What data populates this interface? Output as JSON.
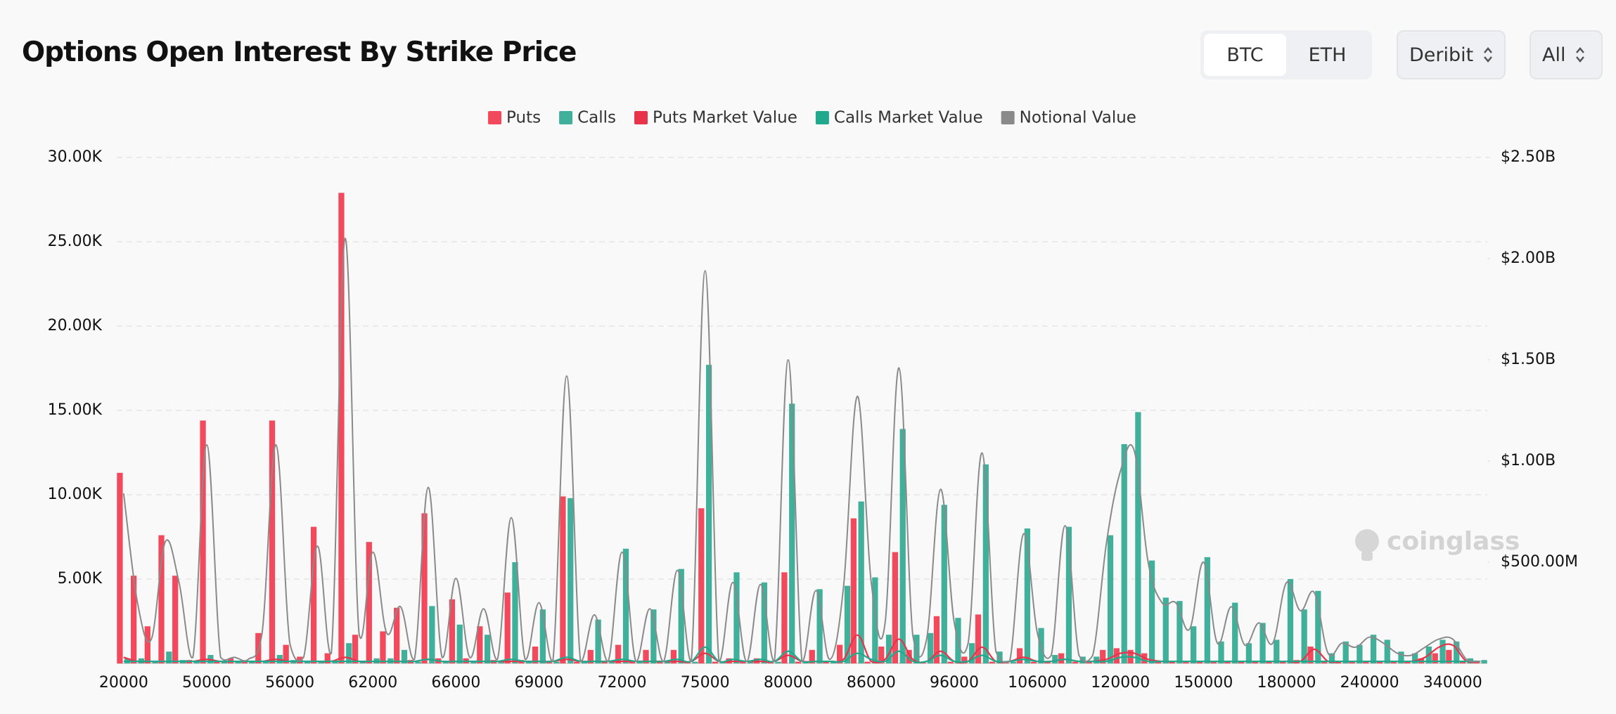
{
  "header": {
    "title": "Options Open Interest By Strike Price"
  },
  "controls": {
    "tabs": [
      "BTC",
      "ETH"
    ],
    "exchange": "Deribit",
    "expiry": "All"
  },
  "watermark": "coinglass",
  "chart_data": {
    "type": "bar",
    "categories": [
      "20000",
      null,
      null,
      null,
      null,
      null,
      "50000",
      null,
      null,
      null,
      null,
      null,
      "56000",
      null,
      null,
      null,
      null,
      null,
      "62000",
      null,
      null,
      null,
      null,
      null,
      "66000",
      null,
      null,
      null,
      null,
      null,
      "69000",
      null,
      null,
      null,
      null,
      null,
      "72000",
      null,
      null,
      null,
      null,
      null,
      "75000",
      null,
      null,
      null,
      null,
      null,
      "80000",
      null,
      null,
      null,
      null,
      null,
      "86000",
      null,
      null,
      null,
      null,
      null,
      "96000",
      null,
      null,
      null,
      null,
      null,
      "106000",
      null,
      null,
      null,
      null,
      null,
      "120000",
      null,
      null,
      null,
      null,
      null,
      "150000",
      null,
      null,
      null,
      null,
      null,
      "180000",
      null,
      null,
      null,
      null,
      null,
      "240000",
      null,
      null,
      null,
      null,
      null,
      "340000",
      null,
      null
    ],
    "ylim": [
      0,
      30
    ],
    "yticks": [
      {
        "value": 5,
        "label": "5.00K"
      },
      {
        "value": 10,
        "label": "10.00K"
      },
      {
        "value": 15,
        "label": "15.00K"
      },
      {
        "value": 20,
        "label": "20.00K"
      },
      {
        "value": 25,
        "label": "25.00K"
      },
      {
        "value": 30,
        "label": "30.00K"
      }
    ],
    "y2lim": [
      0,
      2.5
    ],
    "y2ticks": [
      {
        "value": 0.5,
        "label": "$500.00M"
      },
      {
        "value": 1,
        "label": "$1.00B"
      },
      {
        "value": 1.5,
        "label": "$1.50B"
      },
      {
        "value": 2,
        "label": "$2.00B"
      },
      {
        "value": 2.5,
        "label": "$2.50B"
      }
    ],
    "grid": true,
    "legend": "top",
    "series": [
      {
        "name": "Puts",
        "type": "bar",
        "color": "#f2495c",
        "values": [
          11.3,
          5.2,
          2.2,
          7.6,
          5.2,
          0.2,
          14.4,
          0.1,
          0.3,
          0.1,
          1.8,
          14.4,
          1.1,
          0.4,
          8.1,
          0.6,
          27.9,
          1.7,
          7.2,
          1.9,
          3.3,
          0.2,
          8.9,
          0.3,
          3.8,
          0.3,
          2.2,
          0.2,
          4.2,
          0.2,
          1.0,
          0.1,
          9.9,
          0.1,
          0.8,
          0.1,
          1.1,
          0.1,
          0.8,
          0.1,
          0.8,
          0.1,
          9.2,
          0.1,
          0.3,
          0.1,
          0.3,
          0.1,
          5.4,
          0.1,
          0.8,
          0.1,
          1.1,
          8.6,
          0.1,
          1.0,
          6.6,
          0.8,
          0.1,
          2.8,
          0.1,
          0.4,
          2.9,
          0.1,
          0.1,
          0.9,
          0.1,
          0.1,
          0.6,
          0.1,
          0.1,
          0.8,
          0.9,
          0.8,
          0.6,
          0.1,
          0.1,
          0.1,
          0.1,
          0.1,
          0.1,
          0.1,
          0.1,
          0.1,
          0.1,
          0.2,
          1.0,
          0.1,
          0.1,
          0.1,
          0.1,
          0.1,
          0.1,
          0.1,
          0.3,
          0.6,
          0.8,
          0.1,
          0.1
        ]
      },
      {
        "name": "Calls",
        "type": "bar",
        "color": "#40b09a",
        "values": [
          0.3,
          0.3,
          0.1,
          0.7,
          0.2,
          0.1,
          0.5,
          0.1,
          0.1,
          0.1,
          0.1,
          0.5,
          0.2,
          0.1,
          0.1,
          0.1,
          1.2,
          0.1,
          0.3,
          0.3,
          0.8,
          0.1,
          3.4,
          0.1,
          2.3,
          0.1,
          1.7,
          0.1,
          6.0,
          0.1,
          3.2,
          0.1,
          9.8,
          0.1,
          2.6,
          0.1,
          6.8,
          0.1,
          3.2,
          0.1,
          5.6,
          0.1,
          17.7,
          0.1,
          5.4,
          0.1,
          4.8,
          0.1,
          15.4,
          0.1,
          4.4,
          0.1,
          4.6,
          9.6,
          5.1,
          1.7,
          13.9,
          1.7,
          1.8,
          9.4,
          2.7,
          1.2,
          11.8,
          0.7,
          0.1,
          8.0,
          2.1,
          0.5,
          8.1,
          0.4,
          0.4,
          7.6,
          13.0,
          14.9,
          6.1,
          3.9,
          3.7,
          2.2,
          6.3,
          1.3,
          3.6,
          1.2,
          2.4,
          1.4,
          5.0,
          3.2,
          4.3,
          0.6,
          1.3,
          1.1,
          1.7,
          1.4,
          0.7,
          0.6,
          1.0,
          1.4,
          1.3,
          0.3,
          0.2
        ]
      },
      {
        "name": "Puts Market Value",
        "type": "line",
        "axis": "y2",
        "color": "#e8334a",
        "values": [
          0.03,
          0.01,
          0.01,
          0.01,
          0.01,
          0.01,
          0.02,
          0.01,
          0.01,
          0.01,
          0.01,
          0.02,
          0.01,
          0.01,
          0.01,
          0.01,
          0.03,
          0.01,
          0.01,
          0.01,
          0.01,
          0.01,
          0.02,
          0.01,
          0.01,
          0.01,
          0.01,
          0.01,
          0.01,
          0.01,
          0.01,
          0.01,
          0.02,
          0.01,
          0.01,
          0.01,
          0.01,
          0.01,
          0.01,
          0.01,
          0.01,
          0.01,
          0.05,
          0.01,
          0.01,
          0.01,
          0.01,
          0.01,
          0.04,
          0.01,
          0.01,
          0.01,
          0.02,
          0.14,
          0.01,
          0.02,
          0.12,
          0.02,
          0.01,
          0.06,
          0.01,
          0.01,
          0.08,
          0.01,
          0.01,
          0.03,
          0.01,
          0.01,
          0.02,
          0.01,
          0.01,
          0.02,
          0.05,
          0.05,
          0.02,
          0.01,
          0.01,
          0.01,
          0.01,
          0.01,
          0.01,
          0.01,
          0.01,
          0.01,
          0.01,
          0.01,
          0.07,
          0.01,
          0.01,
          0.01,
          0.01,
          0.01,
          0.01,
          0.01,
          0.03,
          0.08,
          0.09,
          0.01,
          0.01
        ]
      },
      {
        "name": "Calls Market Value",
        "type": "line",
        "axis": "y2",
        "color": "#21a98d",
        "values": [
          0.01,
          0.01,
          0.01,
          0.01,
          0.01,
          0.01,
          0.01,
          0.01,
          0.01,
          0.01,
          0.01,
          0.01,
          0.01,
          0.01,
          0.01,
          0.01,
          0.01,
          0.01,
          0.01,
          0.01,
          0.01,
          0.01,
          0.02,
          0.01,
          0.01,
          0.01,
          0.01,
          0.01,
          0.02,
          0.01,
          0.01,
          0.01,
          0.03,
          0.01,
          0.01,
          0.01,
          0.02,
          0.01,
          0.01,
          0.01,
          0.02,
          0.01,
          0.08,
          0.01,
          0.02,
          0.01,
          0.02,
          0.01,
          0.06,
          0.01,
          0.01,
          0.01,
          0.01,
          0.05,
          0.02,
          0.01,
          0.06,
          0.01,
          0.01,
          0.04,
          0.01,
          0.01,
          0.04,
          0.01,
          0.01,
          0.02,
          0.01,
          0.01,
          0.02,
          0.01,
          0.01,
          0.01,
          0.03,
          0.03,
          0.01,
          0.01,
          0.01,
          0.01,
          0.01,
          0.01,
          0.01,
          0.01,
          0.01,
          0.01,
          0.01,
          0.01,
          0.01,
          0.01,
          0.01,
          0.01,
          0.01,
          0.01,
          0.01,
          0.01,
          0.01,
          0.01,
          0.01,
          0.01,
          0.01
        ]
      },
      {
        "name": "Notional Value",
        "type": "line",
        "axis": "y2",
        "color": "#8a8a8a",
        "values": [
          0.84,
          0.3,
          0.12,
          0.6,
          0.4,
          0.03,
          1.08,
          0.03,
          0.03,
          0.02,
          0.15,
          1.08,
          0.1,
          0.03,
          0.58,
          0.05,
          2.1,
          0.15,
          0.55,
          0.15,
          0.28,
          0.02,
          0.87,
          0.03,
          0.42,
          0.03,
          0.27,
          0.02,
          0.72,
          0.02,
          0.3,
          0.01,
          1.42,
          0.01,
          0.24,
          0.01,
          0.55,
          0.01,
          0.27,
          0.01,
          0.46,
          0.01,
          1.94,
          0.01,
          0.4,
          0.01,
          0.39,
          0.01,
          1.5,
          0.01,
          0.36,
          0.02,
          0.38,
          1.32,
          0.4,
          0.2,
          1.46,
          0.14,
          0.12,
          0.86,
          0.2,
          0.1,
          1.04,
          0.06,
          0.01,
          0.64,
          0.15,
          0.04,
          0.68,
          0.04,
          0.04,
          0.6,
          0.95,
          1.05,
          0.5,
          0.3,
          0.3,
          0.17,
          0.5,
          0.1,
          0.28,
          0.09,
          0.2,
          0.1,
          0.4,
          0.26,
          0.35,
          0.05,
          0.1,
          0.08,
          0.13,
          0.1,
          0.05,
          0.04,
          0.08,
          0.12,
          0.12,
          0.02,
          0.01
        ]
      }
    ]
  }
}
